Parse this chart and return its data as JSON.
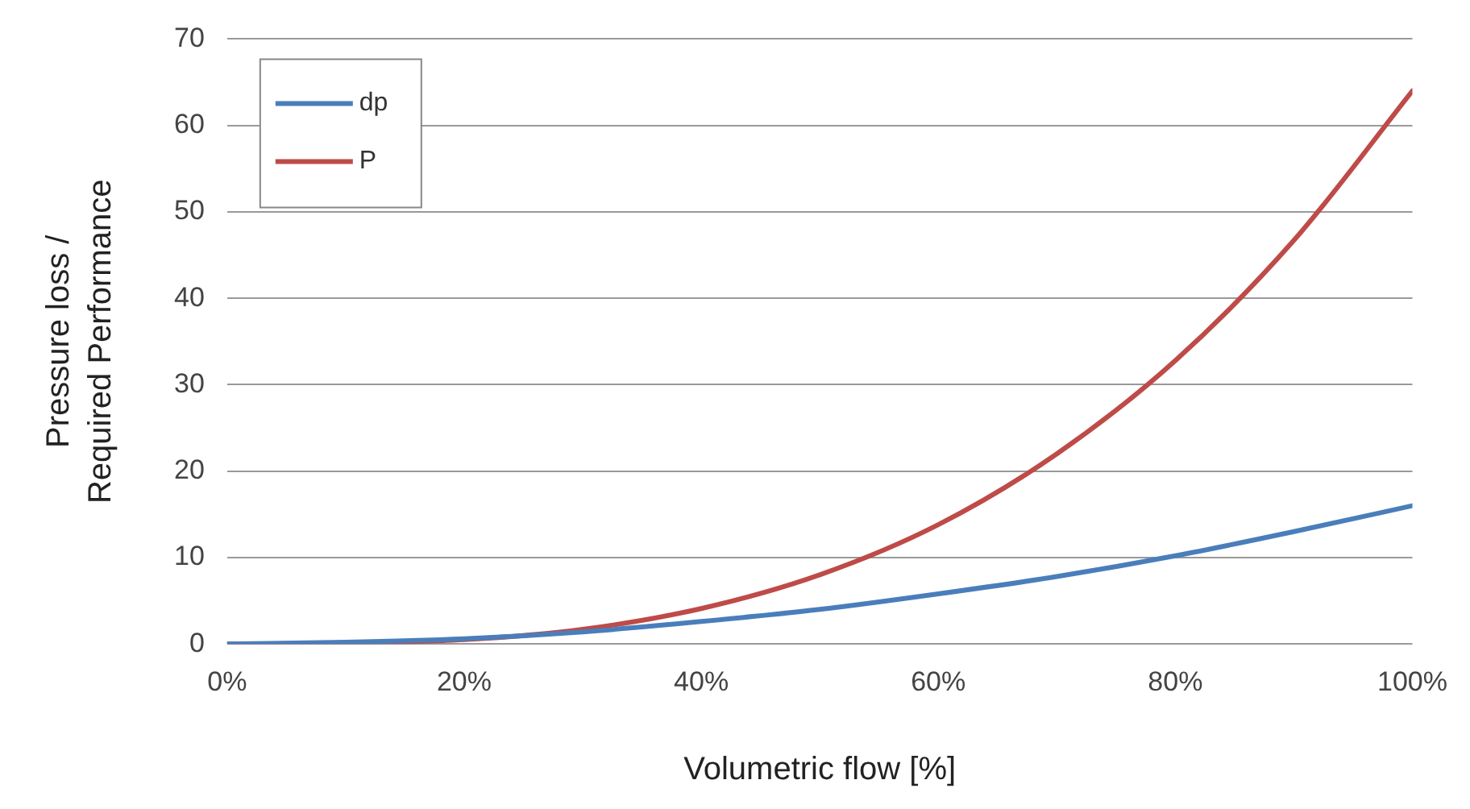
{
  "chart_data": {
    "type": "line",
    "xlabel": "Volumetric flow [%]",
    "ylabel": "Pressure loss /\nRequired Performance",
    "x": [
      0,
      10,
      20,
      30,
      40,
      50,
      60,
      70,
      80,
      90,
      100
    ],
    "series": [
      {
        "name": "dp",
        "color": "#4a7ebb",
        "values": [
          0,
          0.2,
          0.6,
          1.4,
          2.6,
          4,
          5.8,
          7.8,
          10.2,
          13,
          16
        ]
      },
      {
        "name": "P",
        "color": "#be4b48",
        "values": [
          0,
          0.1,
          0.5,
          1.7,
          4.1,
          8,
          13.8,
          22,
          32.8,
          46.7,
          64
        ]
      }
    ],
    "xlim": [
      0,
      100
    ],
    "xticks": [
      {
        "value": 0,
        "label": "0%"
      },
      {
        "value": 20,
        "label": "20%"
      },
      {
        "value": 40,
        "label": "40%"
      },
      {
        "value": 60,
        "label": "60%"
      },
      {
        "value": 80,
        "label": "80%"
      },
      {
        "value": 100,
        "label": "100%"
      }
    ],
    "ylim": [
      0,
      70
    ],
    "yticks": [
      0,
      10,
      20,
      30,
      40,
      50,
      60,
      70
    ],
    "grid": "y",
    "legend": "top left",
    "marker": "none",
    "line_style": "solid"
  }
}
